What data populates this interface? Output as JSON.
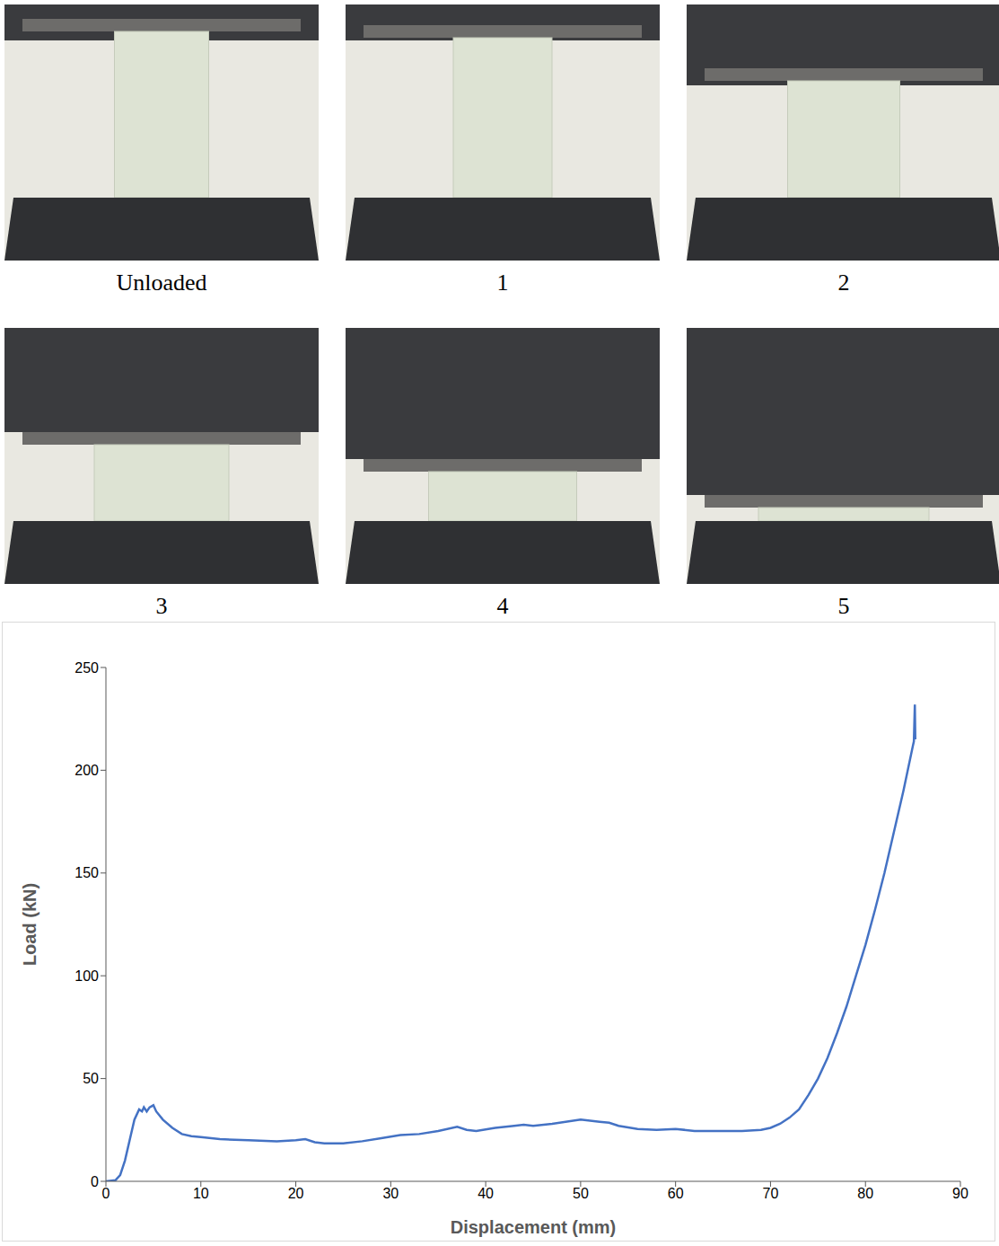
{
  "panels": [
    {
      "caption": "Unloaded"
    },
    {
      "caption": "1"
    },
    {
      "caption": "2"
    },
    {
      "caption": "3"
    },
    {
      "caption": "4"
    },
    {
      "caption": "5"
    }
  ],
  "chart_data": {
    "type": "line",
    "x_label": "Displacement (mm)",
    "y_label": "Load (kN)",
    "xlim": [
      0,
      90
    ],
    "xticks": [
      0,
      10,
      20,
      30,
      40,
      50,
      60,
      70,
      80,
      90
    ],
    "ylim": [
      0,
      250
    ],
    "yticks": [
      0,
      50,
      100,
      150,
      200,
      250
    ],
    "grid": false,
    "series": [
      {
        "name": "Load",
        "color": "#4472c4",
        "x": [
          0,
          1,
          1.5,
          2,
          2.5,
          3,
          3.5,
          3.8,
          4,
          4.3,
          4.6,
          5,
          5.3,
          6,
          7,
          8,
          9,
          10,
          12,
          15,
          18,
          20,
          21,
          22,
          23,
          25,
          27,
          29,
          31,
          33,
          35,
          37,
          38,
          39,
          41,
          43,
          44,
          45,
          47,
          50,
          52,
          53,
          54,
          56,
          58,
          60,
          62,
          65,
          67,
          69,
          70,
          71,
          72,
          73,
          74,
          75,
          76,
          77,
          78,
          79,
          80,
          81,
          82,
          83,
          84,
          85,
          85.1,
          85.2,
          85.25
        ],
        "values": [
          0,
          0.5,
          3,
          10,
          20,
          30,
          35,
          34,
          36,
          34,
          36,
          37,
          34,
          30,
          26,
          23,
          22,
          21.5,
          20.5,
          20,
          19.5,
          20,
          20.5,
          19,
          18.5,
          18.5,
          19.5,
          21,
          22.5,
          23,
          24.5,
          26.5,
          25,
          24.5,
          26,
          27,
          27.5,
          27,
          28,
          30,
          29,
          28.5,
          27,
          25.5,
          25,
          25.5,
          24.5,
          24.5,
          24.5,
          25,
          26,
          28,
          31,
          35,
          42,
          50,
          60,
          72,
          85,
          100,
          115,
          132,
          150,
          170,
          190,
          212,
          214,
          232,
          215
        ]
      }
    ]
  }
}
